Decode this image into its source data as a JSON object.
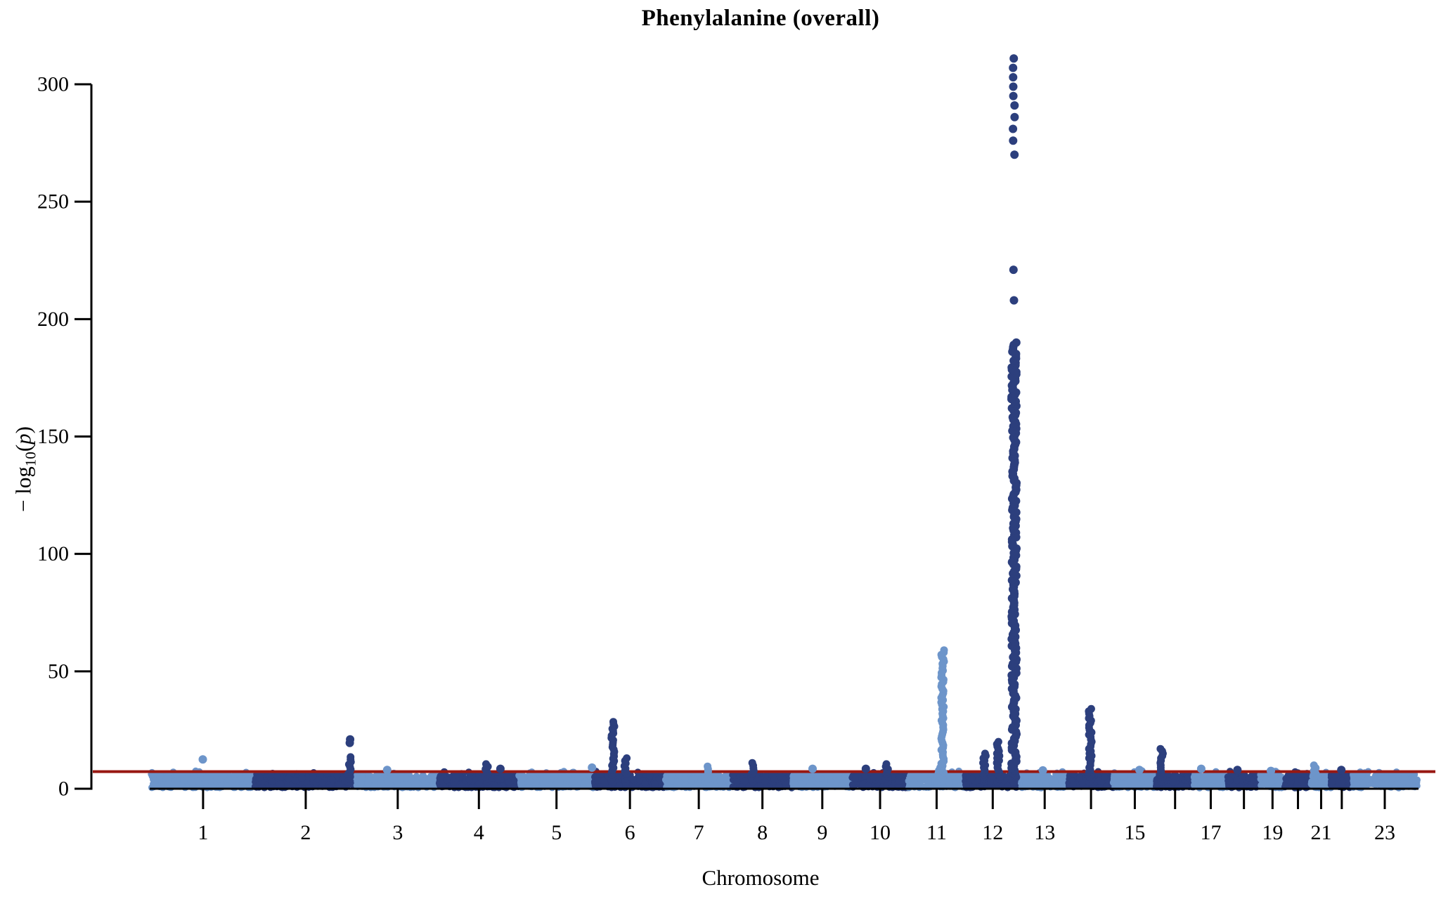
{
  "title": "Phenylalanine (overall)",
  "y_axis": {
    "label_prefix": "− log",
    "label_sub": "10",
    "label_open": "(",
    "label_var": "p",
    "label_close": ")",
    "ticks": [
      0,
      50,
      100,
      150,
      200,
      250,
      300
    ]
  },
  "x_axis": {
    "label": "Chromosome"
  },
  "threshold": {
    "value": 7.3,
    "color": "#981812"
  },
  "colors": {
    "light": "#6d95ca",
    "dark": "#2c3f7d",
    "axis": "#000000",
    "background": "#ffffff"
  },
  "chart_data": {
    "type": "scatter",
    "subtype": "manhattan-plot",
    "title": "Phenylalanine (overall)",
    "xlabel": "Chromosome",
    "ylabel": "-log10(p)",
    "ylim": [
      0,
      315
    ],
    "y_ticks": [
      0,
      50,
      100,
      150,
      200,
      250,
      300
    ],
    "grid": false,
    "legend": "none",
    "threshold_line": 7.3,
    "threshold_color": "#981812",
    "point_colors_alternate": [
      "#6d95ca",
      "#2c3f7d"
    ],
    "baseline_noise_max": 6.3,
    "x_tick_labels_shown": [
      "1",
      "2",
      "3",
      "4",
      "5",
      "6",
      "7",
      "8",
      "9",
      "10",
      "11",
      "12",
      "13",
      "15",
      "17",
      "19",
      "21",
      "23"
    ],
    "description": "GWAS Manhattan plot. Dense carpet of points 0-6.5 on every chromosome, alternating light/dark blue. Red genome-wide significance line at -log10(p)=7.3. Peak -log10(p) values per chromosome listed in peaks (f = fractional position within chromosome; col = dense column value range; dots = isolated point values). Largest signal on chr12 reaching ~311.",
    "chromosomes": [
      {
        "chr": "1",
        "length_mb": 249,
        "shade": "light",
        "show_label": true,
        "peaks": [
          {
            "f": 0.5,
            "dots": [
              12.5
            ]
          }
        ]
      },
      {
        "chr": "2",
        "length_mb": 243,
        "shade": "dark",
        "show_label": true,
        "peaks": [
          {
            "f": 0.93,
            "col": [
              3,
              13.5
            ],
            "dots": [
              19.5,
              21
            ]
          }
        ]
      },
      {
        "chr": "3",
        "length_mb": 198,
        "shade": "light",
        "show_label": true,
        "peaks": [
          {
            "f": 0.38,
            "dots": [
              8
            ]
          }
        ]
      },
      {
        "chr": "4",
        "length_mb": 191,
        "shade": "dark",
        "show_label": true,
        "peaks": [
          {
            "f": 0.6,
            "col": [
              3,
              10.5
            ]
          },
          {
            "f": 0.77,
            "dots": [
              8.5
            ]
          }
        ]
      },
      {
        "chr": "5",
        "length_mb": 181,
        "shade": "light",
        "show_label": true,
        "peaks": [
          {
            "f": 0.97,
            "dots": [
              9
            ]
          }
        ]
      },
      {
        "chr": "6",
        "length_mb": 171,
        "shade": "dark",
        "show_label": true,
        "peaks": [
          {
            "f": 0.26,
            "col": [
              3,
              28.5
            ]
          },
          {
            "f": 0.44,
            "col": [
              3,
              13
            ]
          }
        ]
      },
      {
        "chr": "7",
        "length_mb": 159,
        "shade": "light",
        "show_label": true,
        "peaks": [
          {
            "f": 0.62,
            "col": [
              3,
              9.5
            ]
          }
        ]
      },
      {
        "chr": "8",
        "length_mb": 146,
        "shade": "dark",
        "show_label": true,
        "peaks": [
          {
            "f": 0.34,
            "col": [
              3,
              11
            ]
          }
        ]
      },
      {
        "chr": "9",
        "length_mb": 141,
        "shade": "light",
        "show_label": true,
        "peaks": [
          {
            "f": 0.32,
            "dots": [
              8.5
            ]
          }
        ]
      },
      {
        "chr": "10",
        "length_mb": 136,
        "shade": "dark",
        "show_label": true,
        "peaks": [
          {
            "f": 0.26,
            "dots": [
              8.5
            ]
          },
          {
            "f": 0.62,
            "col": [
              3,
              10.5
            ]
          }
        ]
      },
      {
        "chr": "11",
        "length_mb": 135,
        "shade": "light",
        "show_label": true,
        "peaks": [
          {
            "f": 0.55,
            "col": [
              3,
              9
            ]
          },
          {
            "f": 0.61,
            "col": [
              3,
              59
            ]
          }
        ]
      },
      {
        "chr": "12",
        "length_mb": 134,
        "shade": "dark",
        "show_label": true,
        "peaks": [
          {
            "f": 0.35,
            "col": [
              3,
              15
            ]
          },
          {
            "f": 0.6,
            "col": [
              3,
              20
            ]
          },
          {
            "f": 0.88,
            "col": [
              3,
              190
            ],
            "dots": [
              208,
              221,
              270,
              276,
              281,
              286,
              291,
              295,
              299,
              303,
              307,
              311
            ]
          }
        ]
      },
      {
        "chr": "13",
        "length_mb": 115,
        "shade": "light",
        "show_label": true,
        "peaks": [
          {
            "f": 0.45,
            "dots": [
              7.8
            ]
          }
        ]
      },
      {
        "chr": "14",
        "length_mb": 107,
        "shade": "dark",
        "show_label": false,
        "peaks": [
          {
            "f": 0.48,
            "col": [
              3,
              34
            ]
          }
        ]
      },
      {
        "chr": "15",
        "length_mb": 103,
        "shade": "light",
        "show_label": true,
        "peaks": [
          {
            "f": 0.6,
            "dots": [
              8
            ]
          }
        ]
      },
      {
        "chr": "16",
        "length_mb": 90,
        "shade": "dark",
        "show_label": false,
        "peaks": [
          {
            "f": 0.15,
            "col": [
              3,
              17
            ]
          }
        ]
      },
      {
        "chr": "17",
        "length_mb": 81,
        "shade": "light",
        "show_label": true,
        "peaks": [
          {
            "f": 0.2,
            "dots": [
              8.5
            ]
          }
        ]
      },
      {
        "chr": "18",
        "length_mb": 78,
        "shade": "dark",
        "show_label": false,
        "peaks": [
          {
            "f": 0.3,
            "dots": [
              8
            ]
          }
        ]
      },
      {
        "chr": "19",
        "length_mb": 59,
        "shade": "light",
        "show_label": true,
        "peaks": [
          {
            "f": 0.4,
            "dots": [
              7.6
            ]
          }
        ]
      },
      {
        "chr": "20",
        "length_mb": 63,
        "shade": "dark",
        "show_label": false,
        "peaks": []
      },
      {
        "chr": "21",
        "length_mb": 48,
        "shade": "light",
        "show_label": true,
        "peaks": [
          {
            "f": 0.2,
            "col": [
              3,
              10
            ]
          }
        ]
      },
      {
        "chr": "22",
        "length_mb": 51,
        "shade": "dark",
        "show_label": false,
        "peaks": [
          {
            "f": 0.5,
            "dots": [
              8
            ]
          }
        ]
      },
      {
        "chr": "23",
        "length_mb": 155,
        "shade": "light",
        "show_label": true,
        "peaks": []
      }
    ]
  }
}
